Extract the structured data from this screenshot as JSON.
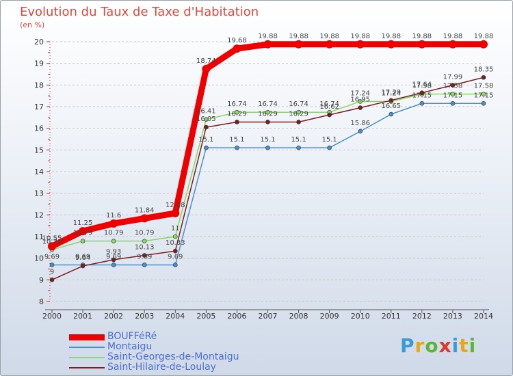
{
  "title": "Evolution du Taux de Taxe d'Habitation",
  "subtitle": "(en %)",
  "logo_text": "Proxiti",
  "chart_data": {
    "type": "line",
    "title": "Evolution du Taux de Taxe d'Habitation",
    "ylabel": "(en %)",
    "xlabel": "",
    "x": [
      "2000",
      "2001",
      "2002",
      "2003",
      "2004",
      "2005",
      "2006",
      "2007",
      "2008",
      "2009",
      "2010",
      "2011",
      "2012",
      "2013",
      "2014"
    ],
    "ylim": [
      8,
      20
    ],
    "yticks": [
      "8",
      "9",
      "10",
      "11",
      "12",
      "13",
      "14",
      "15",
      "16",
      "17",
      "18",
      "19",
      "20"
    ],
    "grid": "horizontal",
    "legend_position": "bottom",
    "series": [
      {
        "name": "BOUFFéRé",
        "color": "#ee0000",
        "values": [
          10.55,
          11.25,
          11.6,
          11.84,
          12.08,
          18.74,
          19.68,
          19.88,
          19.88,
          19.88,
          19.88,
          19.88,
          19.88,
          19.88,
          19.88
        ],
        "labels": [
          "10.55",
          "11.25",
          "11.6",
          "11.84",
          "12.08",
          "18.74",
          "19.68",
          "19.88",
          "19.88",
          "19.88",
          "19.88",
          "19.88",
          "19.88",
          "19.88",
          "19.88"
        ]
      },
      {
        "name": "Montaigu",
        "color": "#4a90c8",
        "values": [
          9.69,
          9.69,
          9.69,
          9.69,
          9.69,
          15.1,
          15.1,
          15.1,
          15.1,
          15.1,
          15.86,
          16.65,
          17.15,
          17.15,
          17.15
        ],
        "labels": [
          "9.69",
          "9.69",
          "9.69",
          "9.69",
          "9.69",
          "15.1",
          "15.1",
          "15.1",
          "15.1",
          "15.1",
          "15.86",
          "16.65",
          "17.15",
          "17.15",
          "17.15"
        ]
      },
      {
        "name": "Saint-Georges-de-Montaigu",
        "color": "#88d860",
        "values": [
          10.39,
          10.79,
          10.79,
          10.79,
          11.0,
          16.41,
          16.74,
          16.74,
          16.74,
          16.74,
          17.24,
          17.24,
          17.58,
          17.58,
          17.58
        ],
        "labels": [
          "10.39",
          "10.79",
          "10.79",
          "10.79",
          "11",
          "16.41",
          "16.74",
          "16.74",
          "16.74",
          "16.74",
          "17.24",
          "17.24",
          "17.58",
          "17.58",
          "17.58"
        ]
      },
      {
        "name": "Saint-Hilaire-de-Loulay",
        "color": "#7a1e1e",
        "values": [
          9.0,
          9.64,
          9.93,
          10.13,
          10.33,
          16.05,
          16.29,
          16.29,
          16.29,
          16.62,
          16.95,
          17.29,
          17.64,
          17.99,
          18.35
        ],
        "labels": [
          "9",
          "9.64",
          "9.93",
          "10.13",
          "10.33",
          "16.05",
          "16.29",
          "16.29",
          "16.29",
          "16.62",
          "16.95",
          "17.29",
          "17.64",
          "17.99",
          "18.35"
        ]
      }
    ]
  }
}
